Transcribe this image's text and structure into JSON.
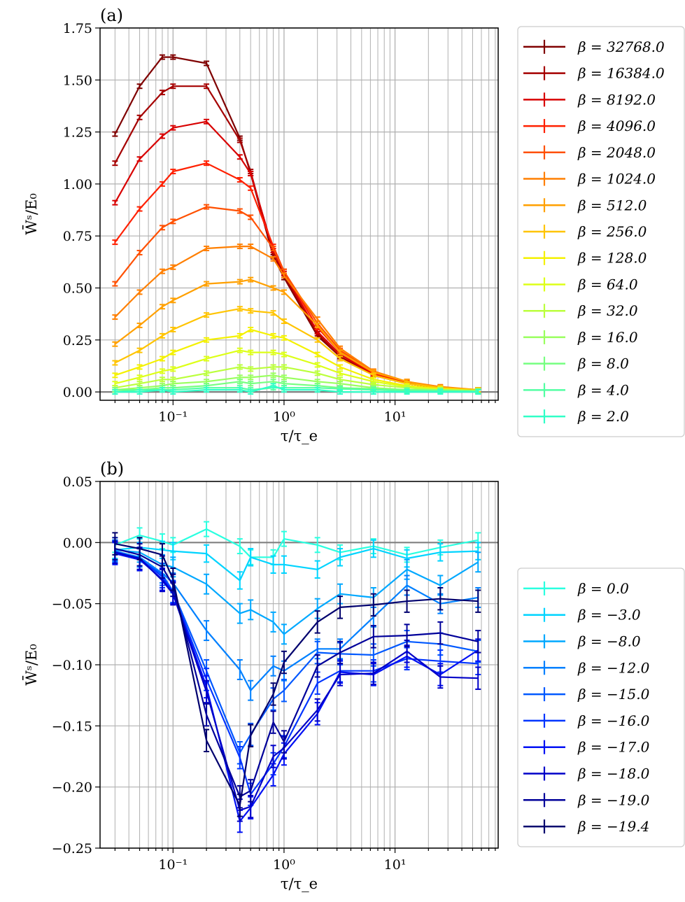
{
  "chart_data": [
    {
      "type": "line",
      "panel_label": "(a)",
      "xlabel": "τ/τ_e",
      "ylabel": "W̄ˢ/E₀",
      "xscale": "log",
      "xlim": [
        0.022,
        85
      ],
      "ylim": [
        -0.04,
        1.75
      ],
      "xticks": [
        {
          "value": 0.1,
          "label": "10⁻¹"
        },
        {
          "value": 1,
          "label": "10⁰"
        },
        {
          "value": 10,
          "label": "10¹"
        }
      ],
      "yticks": [
        "0.00",
        "0.25",
        "0.50",
        "0.75",
        "1.00",
        "1.25",
        "1.50",
        "1.75"
      ],
      "grid": true,
      "legend_position": "outside-right",
      "x": [
        0.03,
        0.05,
        0.08,
        0.1,
        0.2,
        0.4,
        0.5,
        0.8,
        1.0,
        2.0,
        3.2,
        6.4,
        12.8,
        25.6,
        56
      ],
      "series": [
        {
          "name": "β = 32768.0",
          "color": "#7f0000",
          "values": [
            1.24,
            1.47,
            1.61,
            1.61,
            1.58,
            1.22,
            1.05,
            0.65,
            0.55,
            0.27,
            0.17,
            0.08,
            0.04,
            0.02,
            0.01
          ],
          "err": 0.01
        },
        {
          "name": "β = 16384.0",
          "color": "#a50000",
          "values": [
            1.1,
            1.32,
            1.44,
            1.47,
            1.47,
            1.21,
            1.06,
            0.66,
            0.56,
            0.28,
            0.17,
            0.08,
            0.04,
            0.02,
            0.01
          ],
          "err": 0.01
        },
        {
          "name": "β = 8192.0",
          "color": "#d80000",
          "values": [
            0.91,
            1.12,
            1.23,
            1.27,
            1.3,
            1.13,
            1.05,
            0.68,
            0.57,
            0.29,
            0.18,
            0.085,
            0.04,
            0.02,
            0.01
          ],
          "err": 0.01
        },
        {
          "name": "β = 4096.0",
          "color": "#ff2000",
          "values": [
            0.72,
            0.88,
            1.0,
            1.06,
            1.1,
            1.02,
            0.98,
            0.7,
            0.58,
            0.31,
            0.19,
            0.09,
            0.045,
            0.02,
            0.01
          ],
          "err": 0.01
        },
        {
          "name": "β = 2048.0",
          "color": "#ff5000",
          "values": [
            0.52,
            0.67,
            0.79,
            0.82,
            0.89,
            0.87,
            0.84,
            0.69,
            0.58,
            0.33,
            0.2,
            0.095,
            0.05,
            0.02,
            0.01
          ],
          "err": 0.01
        },
        {
          "name": "β = 1024.0",
          "color": "#ff7f00",
          "values": [
            0.36,
            0.48,
            0.58,
            0.6,
            0.69,
            0.7,
            0.7,
            0.64,
            0.56,
            0.35,
            0.21,
            0.1,
            0.05,
            0.025,
            0.01
          ],
          "err": 0.01
        },
        {
          "name": "β = 512.0",
          "color": "#ffa000",
          "values": [
            0.23,
            0.32,
            0.41,
            0.44,
            0.52,
            0.53,
            0.54,
            0.5,
            0.48,
            0.32,
            0.19,
            0.095,
            0.05,
            0.02,
            0.01
          ],
          "err": 0.01
        },
        {
          "name": "β = 256.0",
          "color": "#ffc400",
          "values": [
            0.14,
            0.2,
            0.27,
            0.3,
            0.37,
            0.4,
            0.39,
            0.38,
            0.34,
            0.25,
            0.16,
            0.08,
            0.04,
            0.02,
            0.01
          ],
          "err": 0.01
        },
        {
          "name": "β = 128.0",
          "color": "#f4f100",
          "values": [
            0.08,
            0.12,
            0.16,
            0.19,
            0.25,
            0.27,
            0.3,
            0.27,
            0.26,
            0.18,
            0.12,
            0.06,
            0.03,
            0.015,
            0.005
          ],
          "err": 0.01
        },
        {
          "name": "β = 64.0",
          "color": "#ddff17",
          "values": [
            0.04,
            0.07,
            0.1,
            0.11,
            0.16,
            0.2,
            0.19,
            0.19,
            0.18,
            0.13,
            0.09,
            0.05,
            0.025,
            0.01,
            0.005
          ],
          "err": 0.01
        },
        {
          "name": "β = 32.0",
          "color": "#bbff3c",
          "values": [
            0.02,
            0.04,
            0.06,
            0.06,
            0.09,
            0.12,
            0.11,
            0.12,
            0.12,
            0.09,
            0.06,
            0.035,
            0.02,
            0.01,
            0.005
          ],
          "err": 0.01
        },
        {
          "name": "β = 16.0",
          "color": "#99ff5e",
          "values": [
            0.01,
            0.02,
            0.03,
            0.04,
            0.05,
            0.07,
            0.07,
            0.08,
            0.07,
            0.05,
            0.04,
            0.02,
            0.01,
            0.01,
            0.005
          ],
          "err": 0.01
        },
        {
          "name": "β = 8.0",
          "color": "#76ff80",
          "values": [
            0.01,
            0.01,
            0.02,
            0.02,
            0.03,
            0.05,
            0.04,
            0.05,
            0.04,
            0.03,
            0.02,
            0.015,
            0.01,
            0.005,
            0.005
          ],
          "err": 0.01
        },
        {
          "name": "β = 4.0",
          "color": "#53ffa3",
          "values": [
            0.0,
            0.01,
            0.01,
            0.01,
            0.02,
            0.02,
            0.01,
            0.02,
            0.02,
            0.02,
            0.015,
            0.01,
            0.005,
            0.005,
            0.0
          ],
          "err": 0.01
        },
        {
          "name": "β = 2.0",
          "color": "#30ffc7",
          "values": [
            0.0,
            0.0,
            0.01,
            0.0,
            0.01,
            0.01,
            0.0,
            0.03,
            0.01,
            0.01,
            0.0,
            0.0,
            0.0,
            0.0,
            0.0
          ],
          "err": 0.01
        }
      ]
    },
    {
      "type": "line",
      "panel_label": "(b)",
      "xlabel": "τ/τ_e",
      "ylabel": "W̄ˢ/E₀",
      "xscale": "log",
      "xlim": [
        0.022,
        85
      ],
      "ylim": [
        -0.25,
        0.05
      ],
      "xticks": [
        {
          "value": 0.1,
          "label": "10⁻¹"
        },
        {
          "value": 1,
          "label": "10⁰"
        },
        {
          "value": 10,
          "label": "10¹"
        }
      ],
      "yticks": [
        "0.05",
        "0.00",
        "−0.05",
        "−0.10",
        "−0.15",
        "−0.20",
        "−0.25"
      ],
      "grid": true,
      "legend_position": "outside-right",
      "x": [
        0.03,
        0.05,
        0.08,
        0.1,
        0.2,
        0.4,
        0.5,
        0.8,
        1.0,
        2.0,
        3.2,
        6.4,
        12.8,
        25.6,
        56
      ],
      "series": [
        {
          "name": "β = 0.0",
          "color": "#2affe0",
          "values": [
            -0.002,
            0.006,
            0.001,
            -0.002,
            0.011,
            -0.003,
            -0.012,
            -0.012,
            0.003,
            -0.002,
            -0.008,
            -0.003,
            -0.01,
            -0.004,
            0.002
          ],
          "err": 0.006
        },
        {
          "name": "β = −3.0",
          "color": "#00d4ff",
          "values": [
            -0.006,
            -0.004,
            -0.006,
            -0.007,
            -0.009,
            -0.031,
            -0.012,
            -0.018,
            -0.018,
            -0.022,
            -0.012,
            -0.005,
            -0.013,
            -0.008,
            -0.007
          ],
          "err": 0.007
        },
        {
          "name": "β = −8.0",
          "color": "#00a8ff",
          "values": [
            -0.006,
            -0.008,
            -0.018,
            -0.02,
            -0.034,
            -0.058,
            -0.055,
            -0.065,
            -0.075,
            -0.054,
            -0.042,
            -0.045,
            -0.022,
            -0.035,
            -0.016
          ],
          "err": 0.008
        },
        {
          "name": "β = −12.0",
          "color": "#0080ff",
          "values": [
            -0.007,
            -0.012,
            -0.025,
            -0.033,
            -0.072,
            -0.104,
            -0.121,
            -0.101,
            -0.105,
            -0.087,
            -0.087,
            -0.061,
            -0.035,
            -0.05,
            -0.045
          ],
          "err": 0.008
        },
        {
          "name": "β = −15.0",
          "color": "#0058ff",
          "values": [
            -0.007,
            -0.014,
            -0.026,
            -0.04,
            -0.105,
            -0.172,
            -0.157,
            -0.128,
            -0.121,
            -0.09,
            -0.091,
            -0.092,
            -0.081,
            -0.083,
            -0.089
          ],
          "err": 0.009
        },
        {
          "name": "β = −16.0",
          "color": "#0034ff",
          "values": [
            -0.008,
            -0.013,
            -0.028,
            -0.041,
            -0.112,
            -0.176,
            -0.206,
            -0.181,
            -0.167,
            -0.115,
            -0.105,
            -0.105,
            -0.095,
            -0.097,
            -0.099
          ],
          "err": 0.009
        },
        {
          "name": "β = −17.0",
          "color": "#0010f4",
          "values": [
            -0.009,
            -0.014,
            -0.03,
            -0.041,
            -0.118,
            -0.228,
            -0.217,
            -0.19,
            -0.173,
            -0.14,
            -0.106,
            -0.108,
            -0.093,
            -0.108,
            -0.088
          ],
          "err": 0.009
        },
        {
          "name": "β = −18.0",
          "color": "#0000c8",
          "values": [
            -0.008,
            -0.013,
            -0.031,
            -0.042,
            -0.122,
            -0.219,
            -0.216,
            -0.175,
            -0.168,
            -0.137,
            -0.108,
            -0.107,
            -0.089,
            -0.11,
            -0.111
          ],
          "err": 0.009
        },
        {
          "name": "β = −19.0",
          "color": "#00009a",
          "values": [
            -0.005,
            -0.01,
            -0.02,
            -0.035,
            -0.141,
            -0.208,
            -0.203,
            -0.147,
            -0.163,
            -0.101,
            -0.09,
            -0.077,
            -0.076,
            -0.074,
            -0.081
          ],
          "err": 0.009
        },
        {
          "name": "β = −19.4",
          "color": "#00006e",
          "values": [
            -0.001,
            -0.005,
            -0.01,
            -0.03,
            -0.162,
            -0.215,
            -0.158,
            -0.124,
            -0.098,
            -0.065,
            -0.053,
            -0.051,
            -0.048,
            -0.046,
            -0.048
          ],
          "err": 0.009
        }
      ]
    }
  ]
}
